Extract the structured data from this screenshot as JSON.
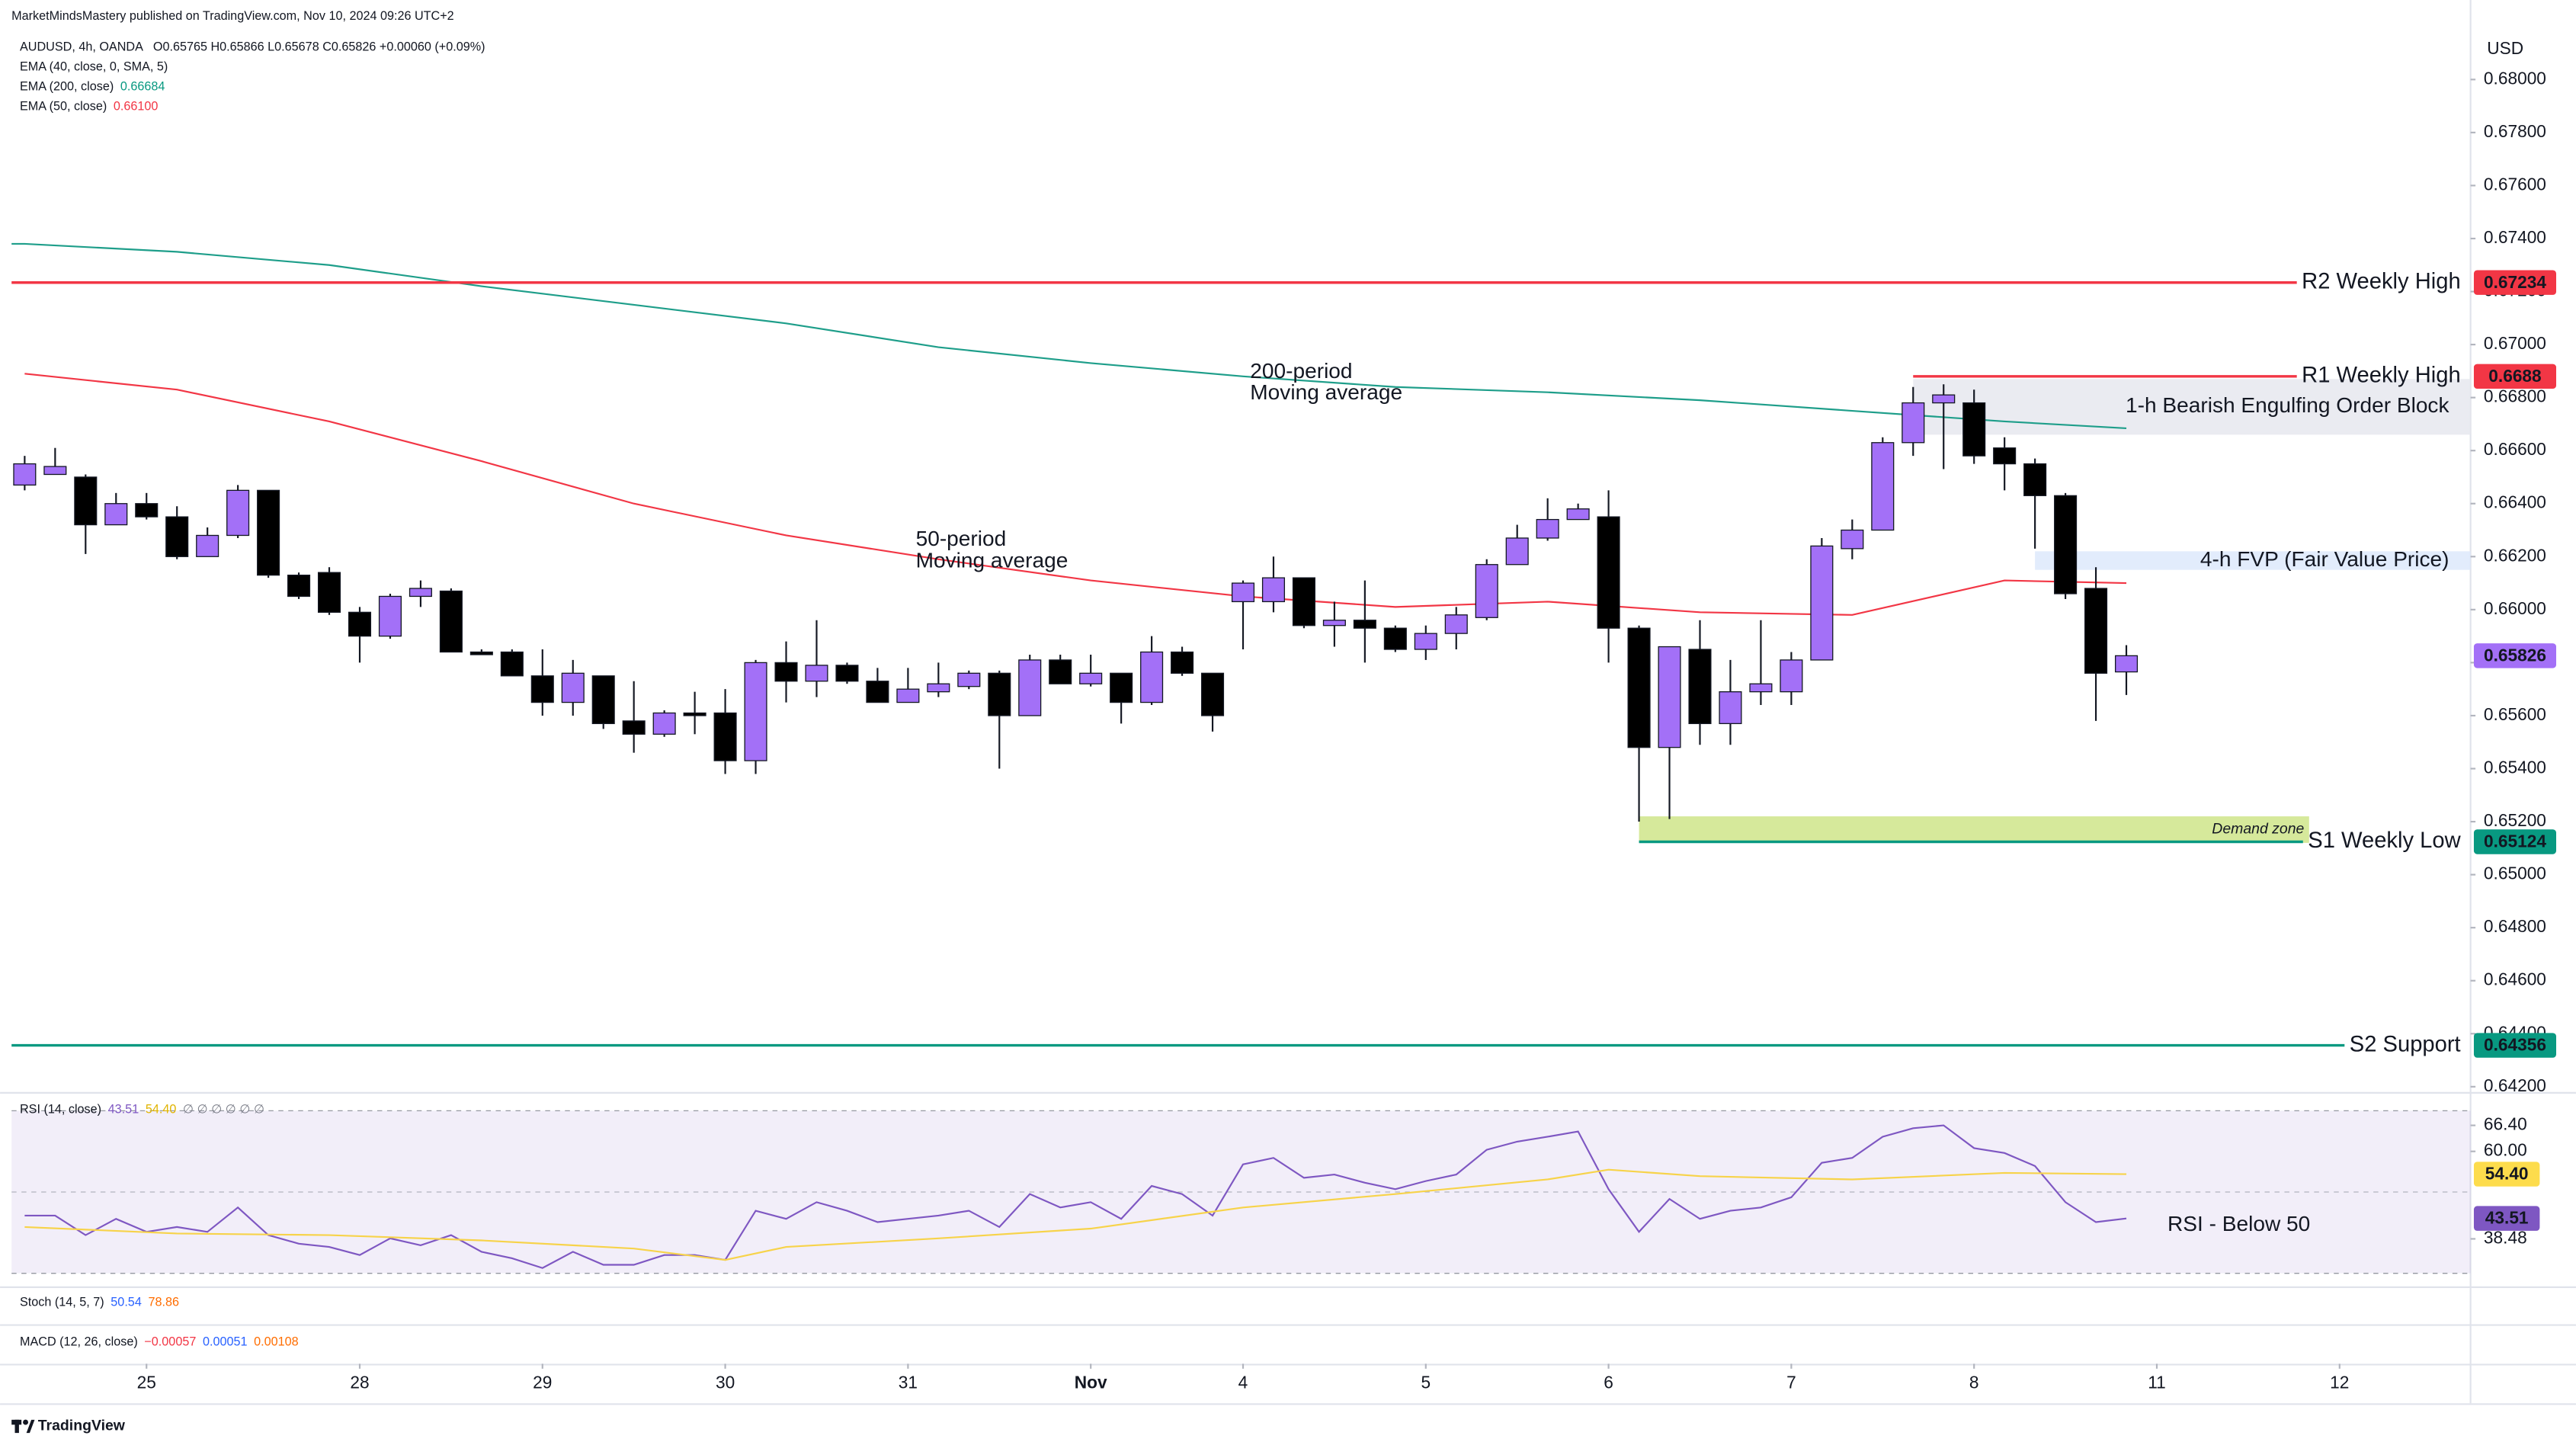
{
  "header": {
    "publisher": "MarketMindsMastery published on TradingView.com, Nov 10, 2024 09:26 UTC+2",
    "symbol": "AUDUSD, 4h, OANDA",
    "ohlc": "O0.65765 H0.65866 L0.65678 C0.65826 +0.00060 (+0.09%)",
    "indicators": [
      {
        "label": "EMA (40, close, 0, SMA, 5)"
      },
      {
        "label": "EMA (200, close)",
        "value": "0.66684",
        "color": "#089981"
      },
      {
        "label": "EMA (50, close)",
        "value": "0.66100",
        "color": "#f23645"
      }
    ]
  },
  "currency": "USD",
  "chart_data": [
    {
      "type": "candlestick",
      "up_color": "#a370f7",
      "down_color": "#000000",
      "wick_color": "#131722",
      "xlim": [
        -0.43,
        80.3
      ],
      "ylim": [
        0.6418,
        0.683
      ],
      "xticks": [
        {
          "value": 4,
          "label": "25"
        },
        {
          "value": 11,
          "label": "28"
        },
        {
          "value": 17,
          "label": "29"
        },
        {
          "value": 23,
          "label": "30"
        },
        {
          "value": 29,
          "label": "31"
        },
        {
          "value": 35,
          "label": "Nov"
        },
        {
          "value": 40,
          "label": "4"
        },
        {
          "value": 46,
          "label": "5"
        },
        {
          "value": 52,
          "label": "6"
        },
        {
          "value": 58,
          "label": "7"
        },
        {
          "value": 64,
          "label": "8"
        },
        {
          "value": 70,
          "label": "11"
        },
        {
          "value": 76,
          "label": "12"
        }
      ],
      "yticks": [
        {
          "value": 0.68,
          "label": "0.68000"
        },
        {
          "value": 0.678,
          "label": "0.67800"
        },
        {
          "value": 0.676,
          "label": "0.67600"
        },
        {
          "value": 0.674,
          "label": "0.67400"
        },
        {
          "value": 0.672,
          "label": "0.67200"
        },
        {
          "value": 0.67,
          "label": "0.67000"
        },
        {
          "value": 0.668,
          "label": "0.66800"
        },
        {
          "value": 0.666,
          "label": "0.66600"
        },
        {
          "value": 0.664,
          "label": "0.66400"
        },
        {
          "value": 0.662,
          "label": "0.66200"
        },
        {
          "value": 0.66,
          "label": "0.66000"
        },
        {
          "value": 0.658,
          "label": "0.65800"
        },
        {
          "value": 0.656,
          "label": "0.65600"
        },
        {
          "value": 0.654,
          "label": "0.65400"
        },
        {
          "value": 0.652,
          "label": "0.65200"
        },
        {
          "value": 0.65,
          "label": "0.65000"
        },
        {
          "value": 0.648,
          "label": "0.64800"
        },
        {
          "value": 0.646,
          "label": "0.64600"
        },
        {
          "value": 0.644,
          "label": "0.64400"
        },
        {
          "value": 0.642,
          "label": "0.64200"
        }
      ],
      "open": [
        0.6647,
        0.6651,
        0.665,
        0.6632,
        0.664,
        0.6635,
        0.662,
        0.6628,
        0.6645,
        0.6613,
        0.6614,
        0.6599,
        0.659,
        0.6605,
        0.6607,
        0.6584,
        0.6584,
        0.6575,
        0.6565,
        0.6575,
        0.6558,
        0.6553,
        0.6561,
        0.6561,
        0.6543,
        0.658,
        0.6573,
        0.6579,
        0.6573,
        0.6565,
        0.6569,
        0.6571,
        0.6576,
        0.656,
        0.6581,
        0.6572,
        0.6576,
        0.6565,
        0.6584,
        0.6576,
        0.6603,
        0.6603,
        0.6612,
        0.6594,
        0.6596,
        0.6593,
        0.6585,
        0.6591,
        0.6597,
        0.6617,
        0.6627,
        0.6634,
        0.6635,
        0.6593,
        0.6548,
        0.6585,
        0.6557,
        0.6569,
        0.6569,
        0.6581,
        0.6623,
        0.663,
        0.6663,
        0.6678,
        0.6678,
        0.6661,
        0.6655,
        0.6643,
        0.6608,
        0.65765
      ],
      "high": [
        0.6658,
        0.6661,
        0.6651,
        0.6644,
        0.6644,
        0.6639,
        0.6631,
        0.6647,
        0.6645,
        0.6614,
        0.6616,
        0.6601,
        0.6606,
        0.6611,
        0.6608,
        0.6585,
        0.6585,
        0.6585,
        0.6581,
        0.6575,
        0.6573,
        0.6562,
        0.6569,
        0.657,
        0.6581,
        0.6588,
        0.6596,
        0.658,
        0.6578,
        0.6578,
        0.658,
        0.6577,
        0.6577,
        0.6583,
        0.6583,
        0.6583,
        0.6576,
        0.659,
        0.6586,
        0.6576,
        0.6611,
        0.662,
        0.6612,
        0.6603,
        0.6611,
        0.6594,
        0.6594,
        0.6601,
        0.6619,
        0.6632,
        0.6642,
        0.664,
        0.6645,
        0.6594,
        0.6586,
        0.6596,
        0.6581,
        0.6596,
        0.6584,
        0.6627,
        0.6634,
        0.6665,
        0.6684,
        0.6685,
        0.6683,
        0.6665,
        0.6657,
        0.6644,
        0.6616,
        0.65866
      ],
      "low": [
        0.6645,
        0.6651,
        0.6621,
        0.6632,
        0.6634,
        0.6619,
        0.662,
        0.6627,
        0.6612,
        0.6604,
        0.6598,
        0.658,
        0.6589,
        0.6601,
        0.6584,
        0.6583,
        0.6575,
        0.656,
        0.656,
        0.6555,
        0.6546,
        0.6552,
        0.6553,
        0.6538,
        0.6538,
        0.6565,
        0.6567,
        0.6572,
        0.6565,
        0.6565,
        0.6567,
        0.657,
        0.654,
        0.656,
        0.6572,
        0.6571,
        0.6557,
        0.6564,
        0.6575,
        0.6554,
        0.6585,
        0.6599,
        0.6593,
        0.6586,
        0.658,
        0.6584,
        0.6581,
        0.6585,
        0.6596,
        0.6617,
        0.6626,
        0.6634,
        0.658,
        0.652,
        0.6521,
        0.6549,
        0.6549,
        0.6564,
        0.6564,
        0.6581,
        0.6619,
        0.663,
        0.6658,
        0.6653,
        0.6655,
        0.6645,
        0.6623,
        0.6604,
        0.6558,
        0.65678
      ],
      "close": [
        0.6655,
        0.6654,
        0.6632,
        0.664,
        0.6635,
        0.662,
        0.6628,
        0.6645,
        0.6613,
        0.6605,
        0.6599,
        0.659,
        0.6605,
        0.6608,
        0.6584,
        0.6583,
        0.6575,
        0.6565,
        0.6576,
        0.6557,
        0.6553,
        0.6561,
        0.656,
        0.6543,
        0.658,
        0.6573,
        0.6579,
        0.6573,
        0.6565,
        0.657,
        0.6572,
        0.6576,
        0.656,
        0.6581,
        0.6572,
        0.6576,
        0.6565,
        0.6584,
        0.6576,
        0.656,
        0.661,
        0.6612,
        0.6594,
        0.6596,
        0.6593,
        0.6585,
        0.6591,
        0.6598,
        0.6617,
        0.6627,
        0.6634,
        0.6638,
        0.6593,
        0.6548,
        0.6586,
        0.6557,
        0.6569,
        0.6572,
        0.6581,
        0.6624,
        0.663,
        0.6663,
        0.6678,
        0.6681,
        0.6658,
        0.6655,
        0.6643,
        0.6606,
        0.6576,
        0.65826
      ],
      "last_color": "#a370f7",
      "lines": [
        {
          "color": "#1e9e8a",
          "label": [
            "200-period",
            "Moving average"
          ],
          "x": [
            0,
            5,
            10,
            15,
            20,
            25,
            30,
            35,
            40,
            45,
            50,
            55,
            60,
            65,
            69
          ],
          "values": [
            0.6738,
            0.6735,
            0.673,
            0.6722,
            0.6715,
            0.6708,
            0.6699,
            0.6693,
            0.6688,
            0.6684,
            0.6682,
            0.6679,
            0.6675,
            0.6671,
            0.66684
          ]
        },
        {
          "color": "#f23645",
          "label": [
            "50-period",
            "Moving average"
          ],
          "x": [
            0,
            5,
            10,
            15,
            20,
            25,
            30,
            35,
            40,
            45,
            50,
            55,
            60,
            65,
            69
          ],
          "values": [
            0.6689,
            0.6683,
            0.6671,
            0.6656,
            0.664,
            0.6628,
            0.6619,
            0.6611,
            0.6605,
            0.6601,
            0.6603,
            0.6599,
            0.6598,
            0.6611,
            0.661
          ]
        }
      ],
      "zones": [
        {
          "label": "1-h Bearish Engulfing Order Block",
          "from": 62,
          "range": [
            0.6666,
            0.6687
          ],
          "color": "#e6e8ee",
          "text_color": "#131722"
        },
        {
          "label": "4-h FVP (Fair Value Price)",
          "from": 66,
          "range": [
            0.6615,
            0.6622
          ],
          "color": "#dde9fb",
          "text_color": "#131722"
        },
        {
          "label": "Demand zone",
          "from": 53,
          "to": 75,
          "range": [
            0.6512,
            0.6522
          ],
          "color": "#cfe58a",
          "text_color": "#e39b17"
        }
      ],
      "levels": [
        {
          "label": "R2 Weekly High",
          "value": 0.67234,
          "color": "#f23645"
        },
        {
          "label": "R1 Weekly High",
          "value": 0.6688,
          "from": 62,
          "color": "#f23645"
        },
        {
          "label": "S1 Weekly Low",
          "value": 0.65124,
          "from": 53,
          "color": "#089981"
        },
        {
          "label": "S2 Support",
          "value": 0.64356,
          "color": "#089981"
        }
      ]
    },
    {
      "type": "line",
      "title": "RSI (14, close)",
      "header_extra": "∅ ∅ ∅ ∅ ∅ ∅",
      "ylim": [
        27.2,
        73.8
      ],
      "band": [
        30,
        70
      ],
      "midline": 50,
      "yticks": [
        {
          "value": 66.4,
          "label": "66.40"
        },
        {
          "value": 60,
          "label": "60.00"
        },
        {
          "value": 38.48,
          "label": "38.48"
        }
      ],
      "tags": [
        {
          "value": 54.4,
          "label": "54.40",
          "color": "#fddc4c",
          "text_color": "#131722"
        },
        {
          "value": 43.51,
          "label": "43.51",
          "color": "#7e57c2",
          "text_color": "#ffffff"
        }
      ],
      "annotation": "RSI - Below 50",
      "series": [
        {
          "color": "#7e57c2",
          "values": [
            44.2,
            44.2,
            39.4,
            43.4,
            40.2,
            41.4,
            40.2,
            46.2,
            39.4,
            37.3,
            36.5,
            34.5,
            38.6,
            36.9,
            39.4,
            35.3,
            33.7,
            31.3,
            35.3,
            32.1,
            32.1,
            34.5,
            34.5,
            33.3,
            45.4,
            43.4,
            47.5,
            45.4,
            42.6,
            43.4,
            44.2,
            45.4,
            41.4,
            49.5,
            46.2,
            47.5,
            43.4,
            51.5,
            49.5,
            44.2,
            56.8,
            58.4,
            53.5,
            54.3,
            52.3,
            50.7,
            52.7,
            54.3,
            60.4,
            62.4,
            63.6,
            64.9,
            50.7,
            40.2,
            48.3,
            43.4,
            45.4,
            46.2,
            48.7,
            57.2,
            58.4,
            63.6,
            65.7,
            66.4,
            60.8,
            59.6,
            56.4,
            47.5,
            42.6,
            43.51
          ]
        },
        {
          "color": "#f7d34a",
          "x": [
            0,
            5,
            10,
            15,
            20,
            23,
            25,
            30,
            35,
            40,
            45,
            50,
            52,
            55,
            60,
            65,
            69
          ],
          "values": [
            41.4,
            39.8,
            39.4,
            38.1,
            36.1,
            33.3,
            36.5,
            38.6,
            41.0,
            46.2,
            49.5,
            53.1,
            55.5,
            53.9,
            53.1,
            54.7,
            54.4
          ]
        }
      ]
    }
  ],
  "panes": [
    {
      "title": "Stoch (14, 5, 7)",
      "values": [
        {
          "text": "50.54",
          "color": "#2962ff"
        },
        {
          "text": "78.86",
          "color": "#ff6d00"
        }
      ]
    },
    {
      "title": "MACD (12, 26, close)",
      "values": [
        {
          "text": "−0.00057",
          "color": "#f23645"
        },
        {
          "text": "0.00051",
          "color": "#2962ff"
        },
        {
          "text": "0.00108",
          "color": "#ff6d00"
        }
      ]
    }
  ],
  "footer": "TradingView"
}
